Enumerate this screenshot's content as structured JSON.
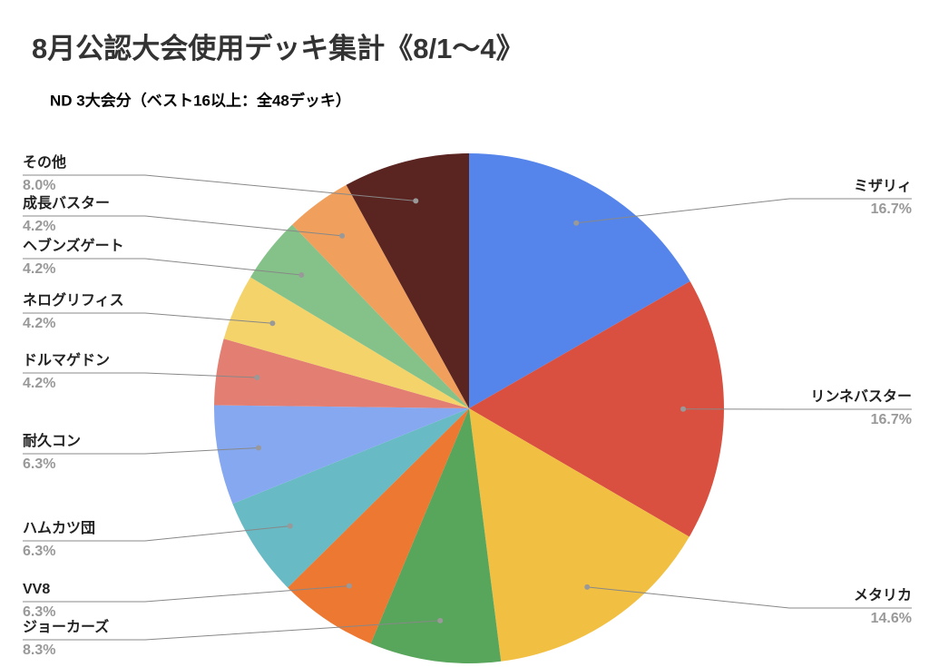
{
  "chart_data": {
    "type": "pie",
    "title": "8月公認大会使用デッキ集計《8/1〜4》",
    "subtitle": "ND 3大会分（ベスト16以上：全48デッキ）",
    "categories": [
      "ミザリィ",
      "リンネバスター",
      "メタリカ",
      "ジョーカーズ",
      "VV8",
      "ハムカツ団",
      "耐久コン",
      "ドルマゲドン",
      "ネログリフィス",
      "ヘブンズゲート",
      "成長バスター",
      "その他"
    ],
    "values": [
      16.7,
      16.7,
      14.6,
      8.3,
      6.3,
      6.3,
      6.3,
      4.2,
      4.2,
      4.2,
      4.2,
      8.0
    ],
    "value_labels": [
      "16.7%",
      "16.7%",
      "14.6%",
      "8.3%",
      "6.3%",
      "6.3%",
      "6.3%",
      "4.2%",
      "4.2%",
      "4.2%",
      "4.2%",
      "8.0%"
    ],
    "colors": [
      "#5585ea",
      "#d95040",
      "#f1bf42",
      "#58a55c",
      "#ec7832",
      "#68bac4",
      "#86a8f0",
      "#e27f72",
      "#f4d36a",
      "#85c289",
      "#f0a05c",
      "#5a2420"
    ]
  }
}
